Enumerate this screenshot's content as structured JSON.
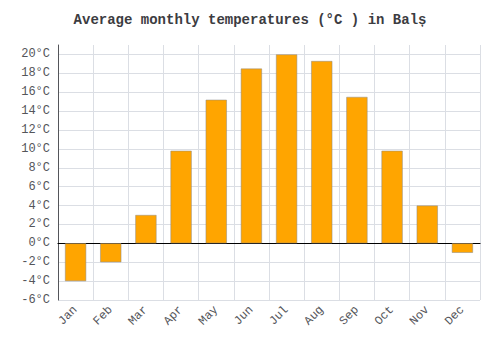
{
  "chart_data": {
    "type": "bar",
    "title": "Average monthly temperatures (°C ) in Balș",
    "categories": [
      "Jan",
      "Feb",
      "Mar",
      "Apr",
      "May",
      "Jun",
      "Jul",
      "Aug",
      "Sep",
      "Oct",
      "Nov",
      "Dec"
    ],
    "values": [
      -4.0,
      -2.0,
      3.0,
      9.8,
      15.2,
      18.5,
      20.0,
      19.3,
      15.5,
      9.8,
      4.0,
      -1.0
    ],
    "color": "#FFA500",
    "ylim": [
      -6,
      21
    ],
    "yticks": [
      {
        "value": -6,
        "label": "-6°C"
      },
      {
        "value": -4,
        "label": "-4°C"
      },
      {
        "value": -2,
        "label": "-2°C"
      },
      {
        "value": 0,
        "label": "0°C"
      },
      {
        "value": 2,
        "label": "2°C"
      },
      {
        "value": 4,
        "label": "4°C"
      },
      {
        "value": 6,
        "label": "6°C"
      },
      {
        "value": 8,
        "label": "8°C"
      },
      {
        "value": 10,
        "label": "10°C"
      },
      {
        "value": 12,
        "label": "12°C"
      },
      {
        "value": 14,
        "label": "14°C"
      },
      {
        "value": 16,
        "label": "16°C"
      },
      {
        "value": 18,
        "label": "18°C"
      },
      {
        "value": 20,
        "label": "20°C"
      }
    ],
    "grid": true
  }
}
